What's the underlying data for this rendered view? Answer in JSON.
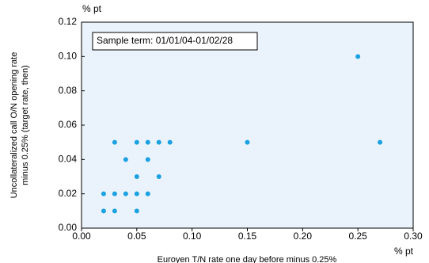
{
  "chart_data": {
    "type": "scatter",
    "y_unit": "% pt",
    "x_unit": "% pt",
    "ylabel": [
      "Uncollateralized call O/N opening rate",
      "minus 0.25% (target rate, then)"
    ],
    "xlabel": "Euroyen T/N rate one day before minus 0.25%",
    "annotation": "Sample term: 01/01/04-01/02/28",
    "color": "#1ba1e2",
    "background": "#eaf3fb",
    "x": [
      0.02,
      0.02,
      0.03,
      0.03,
      0.03,
      0.04,
      0.04,
      0.05,
      0.05,
      0.05,
      0.05,
      0.06,
      0.06,
      0.06,
      0.07,
      0.07,
      0.08,
      0.15,
      0.25,
      0.27
    ],
    "values": [
      0.02,
      0.01,
      0.01,
      0.02,
      0.05,
      0.04,
      0.02,
      0.05,
      0.03,
      0.02,
      0.01,
      0.05,
      0.04,
      0.02,
      0.05,
      0.03,
      0.05,
      0.05,
      0.1,
      0.05
    ],
    "xlim": [
      0,
      0.3
    ],
    "xticks": [
      {
        "value": 0,
        "label": "0.00"
      },
      {
        "value": 0.05,
        "label": "0.05"
      },
      {
        "value": 0.1,
        "label": "0.10"
      },
      {
        "value": 0.15,
        "label": "0.15"
      },
      {
        "value": 0.2,
        "label": "0.20"
      },
      {
        "value": 0.25,
        "label": "0.25"
      },
      {
        "value": 0.3,
        "label": "0.30"
      }
    ],
    "ylim": [
      0,
      0.12
    ],
    "yticks": [
      {
        "value": 0,
        "label": "0.00"
      },
      {
        "value": 0.02,
        "label": "0.02"
      },
      {
        "value": 0.04,
        "label": "0.04"
      },
      {
        "value": 0.06,
        "label": "0.06"
      },
      {
        "value": 0.08,
        "label": "0.08"
      },
      {
        "value": 0.1,
        "label": "0.10"
      },
      {
        "value": 0.12,
        "label": "0.12"
      }
    ]
  }
}
